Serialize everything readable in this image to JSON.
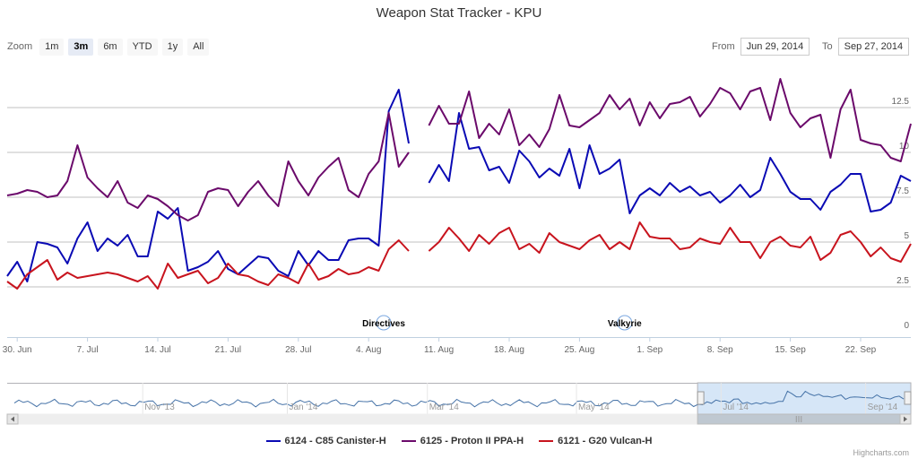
{
  "title": "Weapon Stat Tracker - KPU",
  "zoom": {
    "label": "Zoom",
    "buttons": [
      {
        "label": "1m"
      },
      {
        "label": "3m",
        "active": true
      },
      {
        "label": "6m"
      },
      {
        "label": "YTD"
      },
      {
        "label": "1y"
      },
      {
        "label": "All"
      }
    ]
  },
  "range": {
    "from_label": "From",
    "from_value": "Jun 29, 2014",
    "to_label": "To",
    "to_value": "Sep 27, 2014"
  },
  "colors": {
    "blue": "#0a0ab4",
    "purple": "#6b0a6b",
    "red": "#c8141e",
    "grid": "#c0c0c0",
    "nav_fill": "#d6e6f7"
  },
  "chart_data": {
    "type": "line",
    "title": "Weapon Stat Tracker - KPU",
    "x_start": "2014-06-29",
    "x_end": "2014-09-27",
    "ylim": [
      0,
      15
    ],
    "yticks": [
      {
        "value": 0,
        "label": "0"
      },
      {
        "value": 2.5,
        "label": "2.5"
      },
      {
        "value": 5,
        "label": "5"
      },
      {
        "value": 7.5,
        "label": "7.5"
      },
      {
        "value": 10,
        "label": "10"
      },
      {
        "value": 12.5,
        "label": "12.5"
      }
    ],
    "xticks": [
      {
        "day": 1,
        "label": "30. Jun"
      },
      {
        "day": 8,
        "label": "7. Jul"
      },
      {
        "day": 15,
        "label": "14. Jul"
      },
      {
        "day": 22,
        "label": "21. Jul"
      },
      {
        "day": 29,
        "label": "28. Jul"
      },
      {
        "day": 36,
        "label": "4. Aug"
      },
      {
        "day": 43,
        "label": "11. Aug"
      },
      {
        "day": 50,
        "label": "18. Aug"
      },
      {
        "day": 57,
        "label": "25. Aug"
      },
      {
        "day": 64,
        "label": "1. Sep"
      },
      {
        "day": 71,
        "label": "8. Sep"
      },
      {
        "day": 78,
        "label": "15. Sep"
      },
      {
        "day": 85,
        "label": "22. Sep"
      }
    ],
    "flags": [
      {
        "day": 37.5,
        "label": "Directives"
      },
      {
        "day": 61.5,
        "label": "Valkyrie"
      }
    ],
    "series": [
      {
        "name": "6124 - C85 Canister-H",
        "color": "#0a0ab4",
        "values": [
          3.1,
          3.9,
          2.8,
          5.0,
          4.9,
          4.7,
          3.8,
          5.2,
          6.1,
          4.5,
          5.2,
          4.8,
          5.4,
          4.2,
          4.2,
          6.7,
          6.3,
          6.9,
          3.4,
          3.6,
          3.9,
          4.5,
          3.5,
          3.2,
          3.7,
          4.2,
          4.1,
          3.4,
          3.1,
          4.5,
          3.7,
          4.5,
          4.0,
          4.0,
          5.1,
          5.2,
          5.2,
          4.8,
          12.3,
          13.5,
          10.5,
          null,
          8.3,
          9.3,
          8.4,
          12.2,
          10.2,
          10.3,
          9.0,
          9.2,
          8.3,
          10.1,
          9.5,
          8.6,
          9.1,
          8.7,
          10.2,
          8.0,
          10.4,
          8.8,
          9.1,
          9.6,
          6.6,
          7.6,
          8.0,
          7.6,
          8.3,
          7.8,
          8.1,
          7.6,
          7.8,
          7.2,
          7.6,
          8.2,
          7.5,
          7.9,
          9.7,
          8.8,
          7.8,
          7.4,
          7.4,
          6.8,
          7.8,
          8.2,
          8.8,
          8.8,
          6.7,
          6.8,
          7.2,
          8.7,
          8.4
        ]
      },
      {
        "name": "6125 - Proton II PPA-H",
        "color": "#6b0a6b",
        "values": [
          7.6,
          7.7,
          7.9,
          7.8,
          7.5,
          7.6,
          8.4,
          10.4,
          8.6,
          8.0,
          7.5,
          8.4,
          7.2,
          6.9,
          7.6,
          7.4,
          7.0,
          6.5,
          6.2,
          6.5,
          7.8,
          8.0,
          7.9,
          7.0,
          7.8,
          8.4,
          7.6,
          7.0,
          9.5,
          8.4,
          7.6,
          8.6,
          9.2,
          9.7,
          7.9,
          7.5,
          8.8,
          9.5,
          12.2,
          9.2,
          10.0,
          null,
          11.5,
          12.6,
          11.6,
          11.6,
          13.4,
          10.8,
          11.6,
          11.0,
          12.4,
          10.4,
          11.0,
          10.3,
          11.3,
          13.2,
          11.5,
          11.4,
          11.8,
          12.2,
          13.2,
          12.4,
          13.0,
          11.5,
          12.8,
          11.9,
          12.7,
          12.8,
          13.1,
          12.0,
          12.7,
          13.6,
          13.3,
          12.4,
          13.4,
          13.6,
          11.8,
          14.1,
          12.2,
          11.4,
          11.9,
          12.1,
          9.7,
          12.4,
          13.5,
          10.7,
          10.5,
          10.4,
          9.7,
          9.5,
          11.6
        ]
      },
      {
        "name": "6121 - G20 Vulcan-H",
        "color": "#c8141e",
        "values": [
          2.8,
          2.4,
          3.2,
          3.6,
          4.0,
          2.9,
          3.3,
          3.0,
          3.1,
          3.2,
          3.3,
          3.2,
          3.0,
          2.8,
          3.1,
          2.4,
          3.8,
          3.0,
          3.2,
          3.4,
          2.7,
          3.0,
          3.8,
          3.2,
          3.1,
          2.8,
          2.6,
          3.2,
          3.0,
          2.7,
          3.8,
          2.9,
          3.1,
          3.5,
          3.2,
          3.3,
          3.6,
          3.4,
          4.6,
          5.1,
          4.5,
          null,
          4.5,
          5.0,
          5.8,
          5.2,
          4.5,
          5.4,
          4.9,
          5.5,
          5.8,
          4.6,
          4.9,
          4.4,
          5.5,
          5.0,
          4.8,
          4.6,
          5.1,
          5.4,
          4.6,
          5.0,
          4.6,
          6.1,
          5.3,
          5.2,
          5.2,
          4.6,
          4.7,
          5.2,
          5.0,
          4.9,
          5.8,
          5.0,
          5.0,
          4.1,
          5.0,
          5.3,
          4.8,
          4.7,
          5.3,
          4.0,
          4.4,
          5.4,
          5.6,
          5.0,
          4.2,
          4.7,
          4.1,
          3.9,
          4.9
        ]
      }
    ]
  },
  "navigator": {
    "labels": [
      {
        "pos": 0.15,
        "label": "Nov '13"
      },
      {
        "pos": 0.31,
        "label": "Jan '14"
      },
      {
        "pos": 0.465,
        "label": "Mar '14"
      },
      {
        "pos": 0.63,
        "label": "May '14"
      },
      {
        "pos": 0.79,
        "label": "Jul '14"
      },
      {
        "pos": 0.95,
        "label": "Sep '14"
      }
    ],
    "selection_start": 0.764,
    "selection_end": 1.0,
    "scroll_thumb_label": "III"
  },
  "credits": "Highcharts.com"
}
